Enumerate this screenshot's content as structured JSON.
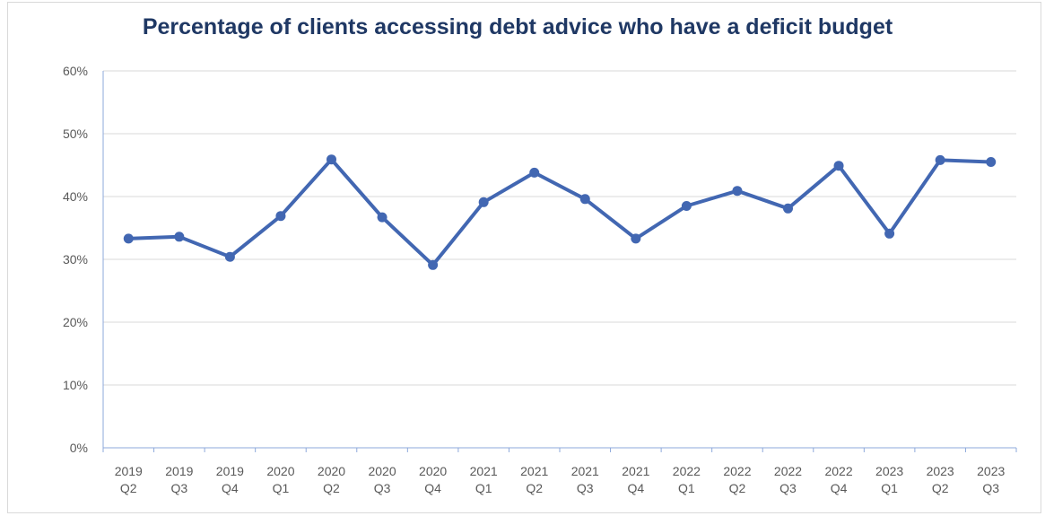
{
  "chart_data": {
    "type": "line",
    "title": "Percentage of clients accessing debt advice who have a deficit budget",
    "xlabel": "",
    "ylabel": "",
    "categories": [
      [
        "2019",
        "Q2"
      ],
      [
        "2019",
        "Q3"
      ],
      [
        "2019",
        "Q4"
      ],
      [
        "2020",
        "Q1"
      ],
      [
        "2020",
        "Q2"
      ],
      [
        "2020",
        "Q3"
      ],
      [
        "2020",
        "Q4"
      ],
      [
        "2021",
        "Q1"
      ],
      [
        "2021",
        "Q2"
      ],
      [
        "2021",
        "Q3"
      ],
      [
        "2021",
        "Q4"
      ],
      [
        "2022",
        "Q1"
      ],
      [
        "2022",
        "Q2"
      ],
      [
        "2022",
        "Q3"
      ],
      [
        "2022",
        "Q4"
      ],
      [
        "2023",
        "Q1"
      ],
      [
        "2023",
        "Q2"
      ],
      [
        "2023",
        "Q3"
      ]
    ],
    "series": [
      {
        "values": [
          33.3,
          33.6,
          30.4,
          36.9,
          45.9,
          36.7,
          29.1,
          39.1,
          43.8,
          39.6,
          33.3,
          38.5,
          40.9,
          38.1,
          44.9,
          34.1,
          45.8,
          45.5
        ]
      }
    ],
    "ylim": [
      0,
      60
    ],
    "yticks": [
      "0%",
      "10%",
      "20%",
      "30%",
      "40%",
      "50%",
      "60%"
    ],
    "grid": true,
    "legend": "none",
    "colors": {
      "line": "#4267b2",
      "title": "#1f3864",
      "grid": "#d9d9d9",
      "axis": "#8ea9db"
    }
  }
}
